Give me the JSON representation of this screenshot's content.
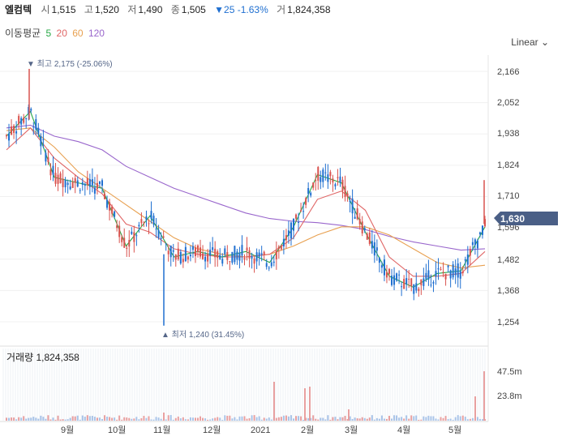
{
  "stock": {
    "name": "엘컴텍",
    "open_label": "시",
    "open": "1,515",
    "high_label": "고",
    "high": "1,520",
    "low_label": "저",
    "low": "1,490",
    "close_label": "종",
    "close": "1,505",
    "change": "▼25 -1.63%",
    "volume_label": "거",
    "volume": "1,824,358"
  },
  "ma": {
    "label": "이동평균",
    "p5": "5",
    "p20": "20",
    "p60": "60",
    "p120": "120",
    "c5": "#27a845",
    "c20": "#e06666",
    "c60": "#e8a050",
    "c120": "#9966cc"
  },
  "scale_label": "Linear ⌄",
  "volume_panel_label": "거래량 1,824,358",
  "annotations": {
    "high": "▼ 최고 2,175 (-25.06%)",
    "low": "▲ 최저 1,240 (31.45%)"
  },
  "current_price_tag": "1,630",
  "colors": {
    "up": "#d9534f",
    "down": "#1f6fd0",
    "tag_bg": "#4a5f86"
  },
  "chart_data": {
    "type": "candlestick",
    "price_axis": {
      "ticks": [
        "2,166",
        "2,052",
        "1,938",
        "1,824",
        "1,710",
        "1,596",
        "1,482",
        "1,368",
        "1,254"
      ],
      "range": [
        1220,
        2200
      ]
    },
    "volume_axis": {
      "ticks": [
        "47.5m",
        "23.8m"
      ]
    },
    "x_labels": [
      "9월",
      "10월",
      "11월",
      "12월",
      "2021",
      "2월",
      "3월",
      "4월",
      "5월"
    ],
    "ma_series": {
      "ma5": [
        [
          0,
          1930
        ],
        [
          5,
          2020
        ],
        [
          10,
          1780
        ],
        [
          15,
          1760
        ],
        [
          20,
          1740
        ],
        [
          25,
          1530
        ],
        [
          30,
          1640
        ],
        [
          35,
          1490
        ],
        [
          40,
          1510
        ],
        [
          45,
          1490
        ],
        [
          50,
          1510
        ],
        [
          55,
          1470
        ],
        [
          60,
          1600
        ],
        [
          65,
          1790
        ],
        [
          70,
          1760
        ],
        [
          75,
          1580
        ],
        [
          80,
          1420
        ],
        [
          85,
          1380
        ],
        [
          90,
          1430
        ],
        [
          95,
          1440
        ],
        [
          100,
          1600
        ]
      ],
      "ma20": [
        [
          0,
          1880
        ],
        [
          5,
          1960
        ],
        [
          10,
          1850
        ],
        [
          15,
          1780
        ],
        [
          20,
          1720
        ],
        [
          25,
          1610
        ],
        [
          30,
          1580
        ],
        [
          35,
          1520
        ],
        [
          40,
          1500
        ],
        [
          45,
          1490
        ],
        [
          50,
          1490
        ],
        [
          55,
          1500
        ],
        [
          60,
          1560
        ],
        [
          65,
          1700
        ],
        [
          70,
          1730
        ],
        [
          75,
          1660
        ],
        [
          80,
          1490
        ],
        [
          85,
          1420
        ],
        [
          90,
          1420
        ],
        [
          95,
          1430
        ],
        [
          100,
          1510
        ]
      ],
      "ma60": [
        [
          0,
          1950
        ],
        [
          5,
          1960
        ],
        [
          10,
          1890
        ],
        [
          15,
          1800
        ],
        [
          20,
          1740
        ],
        [
          25,
          1680
        ],
        [
          30,
          1620
        ],
        [
          35,
          1560
        ],
        [
          40,
          1520
        ],
        [
          45,
          1500
        ],
        [
          50,
          1490
        ],
        [
          55,
          1500
        ],
        [
          60,
          1530
        ],
        [
          65,
          1570
        ],
        [
          70,
          1600
        ],
        [
          75,
          1600
        ],
        [
          80,
          1570
        ],
        [
          85,
          1520
        ],
        [
          90,
          1470
        ],
        [
          95,
          1450
        ],
        [
          100,
          1460
        ]
      ],
      "ma120": [
        [
          0,
          1960
        ],
        [
          5,
          1970
        ],
        [
          10,
          1930
        ],
        [
          15,
          1910
        ],
        [
          20,
          1880
        ],
        [
          25,
          1820
        ],
        [
          30,
          1780
        ],
        [
          35,
          1740
        ],
        [
          40,
          1710
        ],
        [
          45,
          1680
        ],
        [
          50,
          1650
        ],
        [
          55,
          1630
        ],
        [
          60,
          1620
        ],
        [
          65,
          1615
        ],
        [
          70,
          1605
        ],
        [
          75,
          1590
        ],
        [
          80,
          1565
        ],
        [
          85,
          1545
        ],
        [
          90,
          1530
        ],
        [
          95,
          1515
        ],
        [
          100,
          1520
        ]
      ]
    }
  }
}
